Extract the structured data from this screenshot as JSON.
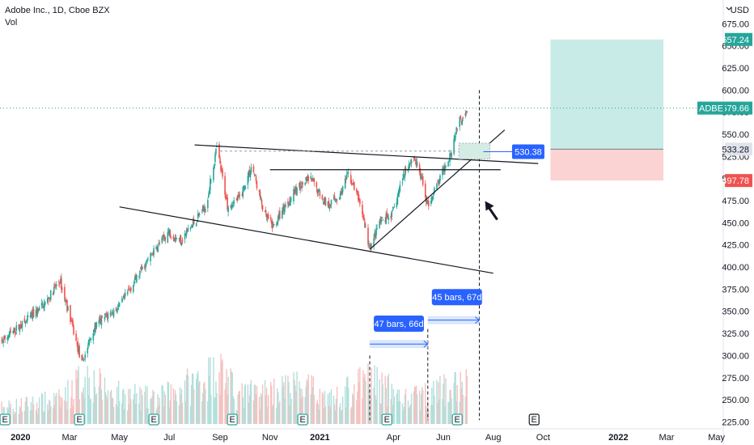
{
  "header": {
    "title": "Adobe Inc., 1D, Cboe BZX",
    "sub": "Vol"
  },
  "currency": "USD",
  "colors": {
    "up": "#26a69a",
    "down": "#ef5350",
    "vol_up": "#b2dfdb",
    "vol_down": "#f5c2c0",
    "label_blue": "#2962ff",
    "profit_zone": "#c9ebe7",
    "loss_zone": "#fbd3d2"
  },
  "icons": [
    "earnings-icon"
  ],
  "chart_data": {
    "type": "candlestick",
    "symbol": "ADBE",
    "y_ticks": [
      "675.00",
      "650.00",
      "625.00",
      "600.00",
      "575.00",
      "550.00",
      "525.00",
      "500.00",
      "475.00",
      "450.00",
      "425.00",
      "400.00",
      "375.00",
      "350.00",
      "325.00",
      "300.00",
      "275.00",
      "250.00",
      "225.00"
    ],
    "ylim": [
      219,
      700
    ],
    "x_labels": [
      {
        "label": "2020",
        "bold": true,
        "date": "2020-01-01"
      },
      {
        "label": "Mar",
        "bold": false,
        "date": "2020-03-01"
      },
      {
        "label": "May",
        "bold": false,
        "date": "2020-05-01"
      },
      {
        "label": "Jul",
        "bold": false,
        "date": "2020-07-01"
      },
      {
        "label": "Sep",
        "bold": false,
        "date": "2020-09-01"
      },
      {
        "label": "Nov",
        "bold": false,
        "date": "2020-11-01"
      },
      {
        "label": "2021",
        "bold": true,
        "date": "2021-01-01"
      },
      {
        "label": "Apr",
        "bold": false,
        "date": "2021-04-01"
      },
      {
        "label": "Jun",
        "bold": false,
        "date": "2021-06-01"
      },
      {
        "label": "Aug",
        "bold": false,
        "date": "2021-08-01"
      },
      {
        "label": "Oct",
        "bold": false,
        "date": "2021-10-01"
      },
      {
        "label": "2022",
        "bold": true,
        "date": "2022-01-01"
      },
      {
        "label": "Mar",
        "bold": false,
        "date": "2022-03-01"
      },
      {
        "label": "May",
        "bold": false,
        "date": "2022-05-01"
      }
    ],
    "price_path": [
      [
        "2019-12-01",
        310
      ],
      [
        "2019-12-20",
        325
      ],
      [
        "2020-01-10",
        340
      ],
      [
        "2020-02-01",
        360
      ],
      [
        "2020-02-18",
        385
      ],
      [
        "2020-03-01",
        345
      ],
      [
        "2020-03-16",
        290
      ],
      [
        "2020-03-30",
        330
      ],
      [
        "2020-04-15",
        345
      ],
      [
        "2020-05-01",
        355
      ],
      [
        "2020-05-20",
        385
      ],
      [
        "2020-06-10",
        415
      ],
      [
        "2020-06-30",
        440
      ],
      [
        "2020-07-15",
        430
      ],
      [
        "2020-07-31",
        450
      ],
      [
        "2020-08-15",
        470
      ],
      [
        "2020-08-28",
        535
      ],
      [
        "2020-09-10",
        470
      ],
      [
        "2020-09-25",
        478
      ],
      [
        "2020-10-10",
        515
      ],
      [
        "2020-10-25",
        460
      ],
      [
        "2020-11-05",
        445
      ],
      [
        "2020-11-20",
        470
      ],
      [
        "2020-12-05",
        490
      ],
      [
        "2020-12-20",
        500
      ],
      [
        "2021-01-10",
        470
      ],
      [
        "2021-01-25",
        480
      ],
      [
        "2021-02-05",
        505
      ],
      [
        "2021-02-20",
        470
      ],
      [
        "2021-03-03",
        420
      ],
      [
        "2021-03-15",
        450
      ],
      [
        "2021-03-31",
        460
      ],
      [
        "2021-04-15",
        510
      ],
      [
        "2021-04-26",
        525
      ],
      [
        "2021-05-05",
        500
      ],
      [
        "2021-05-13",
        470
      ],
      [
        "2021-05-28",
        500
      ],
      [
        "2021-06-10",
        530
      ],
      [
        "2021-06-18",
        560
      ],
      [
        "2021-06-30",
        580
      ]
    ],
    "volume_scale": 100,
    "volume_profile": [
      [
        "2019-12-01",
        22
      ],
      [
        "2020-02-20",
        35
      ],
      [
        "2020-03-20",
        70
      ],
      [
        "2020-04-20",
        45
      ],
      [
        "2020-06-15",
        35
      ],
      [
        "2020-09-05",
        80
      ],
      [
        "2020-09-20",
        40
      ],
      [
        "2020-12-10",
        55
      ],
      [
        "2021-01-15",
        35
      ],
      [
        "2021-03-05",
        65
      ],
      [
        "2021-04-15",
        35
      ],
      [
        "2021-06-05",
        50
      ],
      [
        "2021-06-25",
        60
      ]
    ],
    "earnings_dates": [
      "2019-12-13",
      "2020-03-13",
      "2020-06-12",
      "2020-09-16",
      "2020-12-11",
      "2021-03-24",
      "2021-06-18"
    ],
    "future_earnings_date": "2021-09-20",
    "trendlines": [
      {
        "name": "upper-wedge-line",
        "from": [
          "2020-08-01",
          538
        ],
        "to": [
          "2021-09-25",
          517
        ]
      },
      {
        "name": "lower-wedge-line",
        "from": [
          "2020-05-01",
          468
        ],
        "to": [
          "2021-08-01",
          393
        ]
      },
      {
        "name": "horizontal-neckline",
        "from": [
          "2020-11-01",
          510
        ],
        "to": [
          "2021-08-10",
          510
        ]
      },
      {
        "name": "rising-support-line",
        "from": [
          "2021-03-03",
          420
        ],
        "to": [
          "2021-08-15",
          555
        ]
      }
    ],
    "price_labels": [
      {
        "value": 579.66,
        "text": "579.66",
        "symbol": "ADBE",
        "kind": "last"
      },
      {
        "value": 533.28,
        "text": "533.28",
        "kind": "entry"
      },
      {
        "value": 657.24,
        "text": "657.24",
        "kind": "target"
      },
      {
        "value": 497.78,
        "text": "497.78",
        "kind": "stop"
      }
    ],
    "annotations": {
      "breakout_label": "530.38",
      "range_1": "47 bars, 66d",
      "range_2": "45 bars, 67d"
    },
    "position": {
      "start": "2021-10-10",
      "end": "2022-02-25",
      "entry": 533.28,
      "target": 657.24,
      "stop": 497.78
    }
  }
}
